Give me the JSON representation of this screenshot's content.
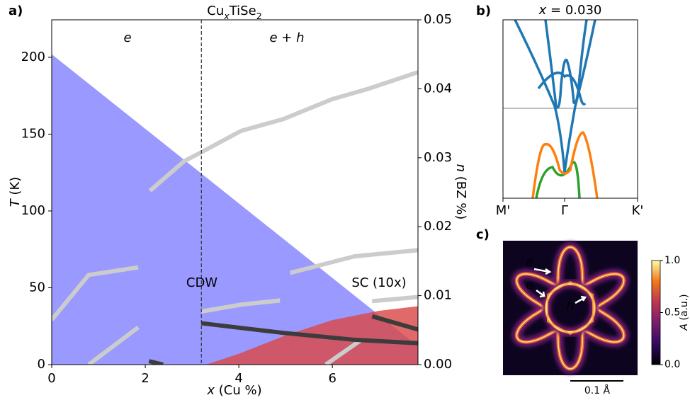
{
  "chart_data": [
    {
      "type": "line",
      "panel_label": "a)",
      "title": [
        "Cu",
        "x",
        "TiSe",
        "2"
      ],
      "xlabel": [
        "x",
        " (Cu %)"
      ],
      "ylabel": [
        "T",
        " (K)"
      ],
      "y2label": [
        "n",
        " (BZ %)"
      ],
      "xlim": [
        0,
        7.83
      ],
      "xticks": [
        0,
        2,
        4,
        6
      ],
      "ylim": [
        0,
        224.4
      ],
      "yticks": [
        0,
        50,
        100,
        150,
        200
      ],
      "y2lim": [
        0,
        0.05
      ],
      "y2ticks": [
        {
          "value": 0,
          "label": "0.00"
        },
        {
          "value": 0.01,
          "label": "0.01"
        },
        {
          "value": 0.02,
          "label": "0.02"
        },
        {
          "value": 0.03,
          "label": "0.03"
        },
        {
          "value": 0.04,
          "label": "0.04"
        },
        {
          "value": 0.05,
          "label": "0.05"
        }
      ],
      "annotations": [
        "e",
        "e + h"
      ],
      "boundary_x": 3.2,
      "regions": [
        {
          "name": "CDW",
          "color": "#9999ff",
          "label_color": "#000000",
          "x": [
            0,
            7.83
          ],
          "values": [
            202,
            12
          ]
        },
        {
          "name": "SC (10x)",
          "color": "#d94848",
          "label_color": "#ee0000",
          "x": [
            3.3,
            4,
            5,
            6,
            7,
            7.83
          ],
          "values": [
            0,
            7,
            19,
            29,
            35,
            38
          ]
        }
      ],
      "series": [
        {
          "color": "#cccccc",
          "axis": "y2",
          "x": [
            2.1,
            2.83,
            3.2,
            4.05,
            4.95,
            6.0,
            6.77,
            7.83
          ],
          "values": [
            0.0252,
            0.0295,
            0.0308,
            0.0339,
            0.0356,
            0.0385,
            0.04,
            0.0424
          ]
        },
        {
          "color": "#cccccc",
          "axis": "y2",
          "x": [
            0,
            0.79,
            1.85
          ],
          "values": [
            0.0065,
            0.013,
            0.0141
          ]
        },
        {
          "color": "#cccccc",
          "axis": "y2",
          "x": [
            5.1,
            6.47,
            7.83
          ],
          "values": [
            0.0133,
            0.0157,
            0.0166
          ]
        },
        {
          "color": "#cccccc",
          "axis": "y2",
          "x": [
            3.2,
            4.05,
            4.88
          ],
          "values": [
            0.0077,
            0.0087,
            0.0093
          ]
        },
        {
          "color": "#cccccc",
          "axis": "y2",
          "x": [
            0.79,
            1.85
          ],
          "values": [
            0,
            0.0054
          ]
        },
        {
          "color": "#cccccc",
          "axis": "y2",
          "x": [
            6.85,
            7.83
          ],
          "values": [
            0.0092,
            0.0098
          ]
        },
        {
          "color": "#cccccc",
          "axis": "y2",
          "x": [
            5.86,
            6.62
          ],
          "values": [
            0,
            0.0036
          ]
        },
        {
          "color": "#3c3c3c",
          "axis": "y2",
          "x": [
            3.2,
            4.95,
            6.47,
            7.83
          ],
          "values": [
            0.006,
            0.0046,
            0.0036,
            0.0031
          ]
        },
        {
          "color": "#3c3c3c",
          "axis": "y2",
          "x": [
            6.85,
            7.83
          ],
          "values": [
            0.007,
            0.0051
          ]
        },
        {
          "color": "#3c3c3c",
          "axis": "y2",
          "x": [
            2.08,
            2.38
          ],
          "values": [
            0.0005,
            0
          ]
        }
      ]
    },
    {
      "type": "band-structure",
      "panel_label": "b)",
      "title": [
        "x",
        " = 0.030"
      ],
      "xticks": [
        "M'",
        "Γ",
        "K'"
      ]
    },
    {
      "type": "heatmap",
      "panel_label": "c)",
      "annotations": [
        "e",
        "e",
        "h"
      ],
      "scale_bar": "0.1 Å",
      "colorbar": {
        "label": [
          "A",
          " (a.u.)"
        ],
        "lim": [
          0,
          1
        ],
        "ticks": [
          {
            "value": 0,
            "label": "0.0"
          },
          {
            "value": 0.5,
            "label": "0.5"
          },
          {
            "value": 1,
            "label": "1.0"
          }
        ]
      }
    }
  ]
}
